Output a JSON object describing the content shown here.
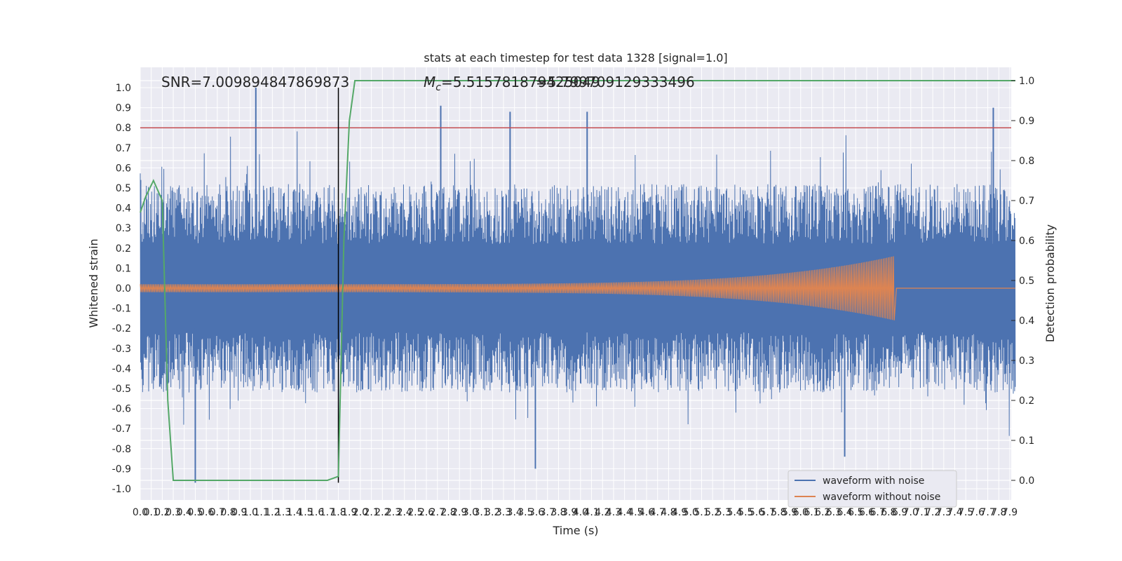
{
  "chart_data": {
    "type": "line",
    "title": "stats at each timestep for test data 1328 [signal=1.0]",
    "xlabel": "Time (s)",
    "ylabel": "Whitened strain",
    "y2label": "Detection probability",
    "xlim": [
      0.0,
      7.95
    ],
    "ylim": [
      -1.1,
      1.1
    ],
    "y2lim": [
      -0.05,
      1.04
    ],
    "x_ticks": [
      "0.0",
      "0.1",
      "0.2",
      "0.3",
      "0.4",
      "0.5",
      "0.6",
      "0.7",
      "0.8",
      "0.9",
      "1.0",
      "1.1",
      "1.2",
      "1.3",
      "1.4",
      "1.5",
      "1.6",
      "1.7",
      "1.8",
      "1.9",
      "2.0",
      "2.1",
      "2.2",
      "2.3",
      "2.4",
      "2.5",
      "2.6",
      "2.7",
      "2.8",
      "2.9",
      "3.0",
      "3.1",
      "3.2",
      "3.3",
      "3.4",
      "3.5",
      "3.6",
      "3.7",
      "3.8",
      "3.9",
      "4.0",
      "4.1",
      "4.2",
      "4.3",
      "4.4",
      "4.5",
      "4.6",
      "4.7",
      "4.8",
      "4.9",
      "5.0",
      "5.1",
      "5.2",
      "5.3",
      "5.4",
      "5.5",
      "5.6",
      "5.7",
      "5.8",
      "5.9",
      "6.0",
      "6.1",
      "6.2",
      "6.3",
      "6.4",
      "6.5",
      "6.6",
      "6.7",
      "6.8",
      "6.9",
      "7.0",
      "7.1",
      "7.2",
      "7.3",
      "7.4",
      "7.5",
      "7.6",
      "7.7",
      "7.8",
      "7.9"
    ],
    "y_ticks": [
      "-1.0",
      "-0.9",
      "-0.8",
      "-0.7",
      "-0.6",
      "-0.5",
      "-0.4",
      "-0.3",
      "-0.2",
      "-0.1",
      "0.0",
      "0.1",
      "0.2",
      "0.3",
      "0.4",
      "0.5",
      "0.6",
      "0.7",
      "0.8",
      "0.9",
      "1.0"
    ],
    "y2_ticks": [
      "0.0",
      "0.1",
      "0.2",
      "0.3",
      "0.4",
      "0.5",
      "0.6",
      "0.7",
      "0.8",
      "0.9",
      "1.0"
    ],
    "annotations": {
      "snr": "SNR=7.009894847869873",
      "mc_prefix": "M",
      "mc_sub": "c",
      "mc_value": "=5.515781879425049",
      "overlap": "=5.799709129333496"
    },
    "threshold": 0.8,
    "merger_time": 1.8,
    "series": [
      {
        "name": "waveform with noise",
        "color": "#4c72b0",
        "envelope_typical": 0.4,
        "peak_max": 1.0,
        "peak_min": -0.97
      },
      {
        "name": "waveform without noise",
        "color": "#dd8452",
        "chirp_start": 1.8,
        "chirp_end": 6.85,
        "start_amp": 0.02,
        "peak_amp": 0.16
      },
      {
        "name": "detection probability",
        "color": "#55a868",
        "axis": "right",
        "x": [
          0.0,
          0.05,
          0.12,
          0.2,
          0.25,
          0.3,
          1.5,
          1.7,
          1.75,
          1.8,
          1.85,
          1.9,
          1.95,
          7.95
        ],
        "y": [
          0.67,
          0.71,
          0.75,
          0.7,
          0.2,
          0.0,
          0.0,
          0.0,
          0.005,
          0.01,
          0.6,
          0.9,
          1.0,
          1.0
        ]
      }
    ],
    "legend": {
      "placement": "lower-right",
      "entries": [
        "waveform with noise",
        "waveform without noise"
      ]
    },
    "grid": true,
    "colors": {
      "threshold": "#c44e52",
      "vline": "#000000",
      "background": "#eaeaf2",
      "grid": "#ffffff"
    }
  }
}
